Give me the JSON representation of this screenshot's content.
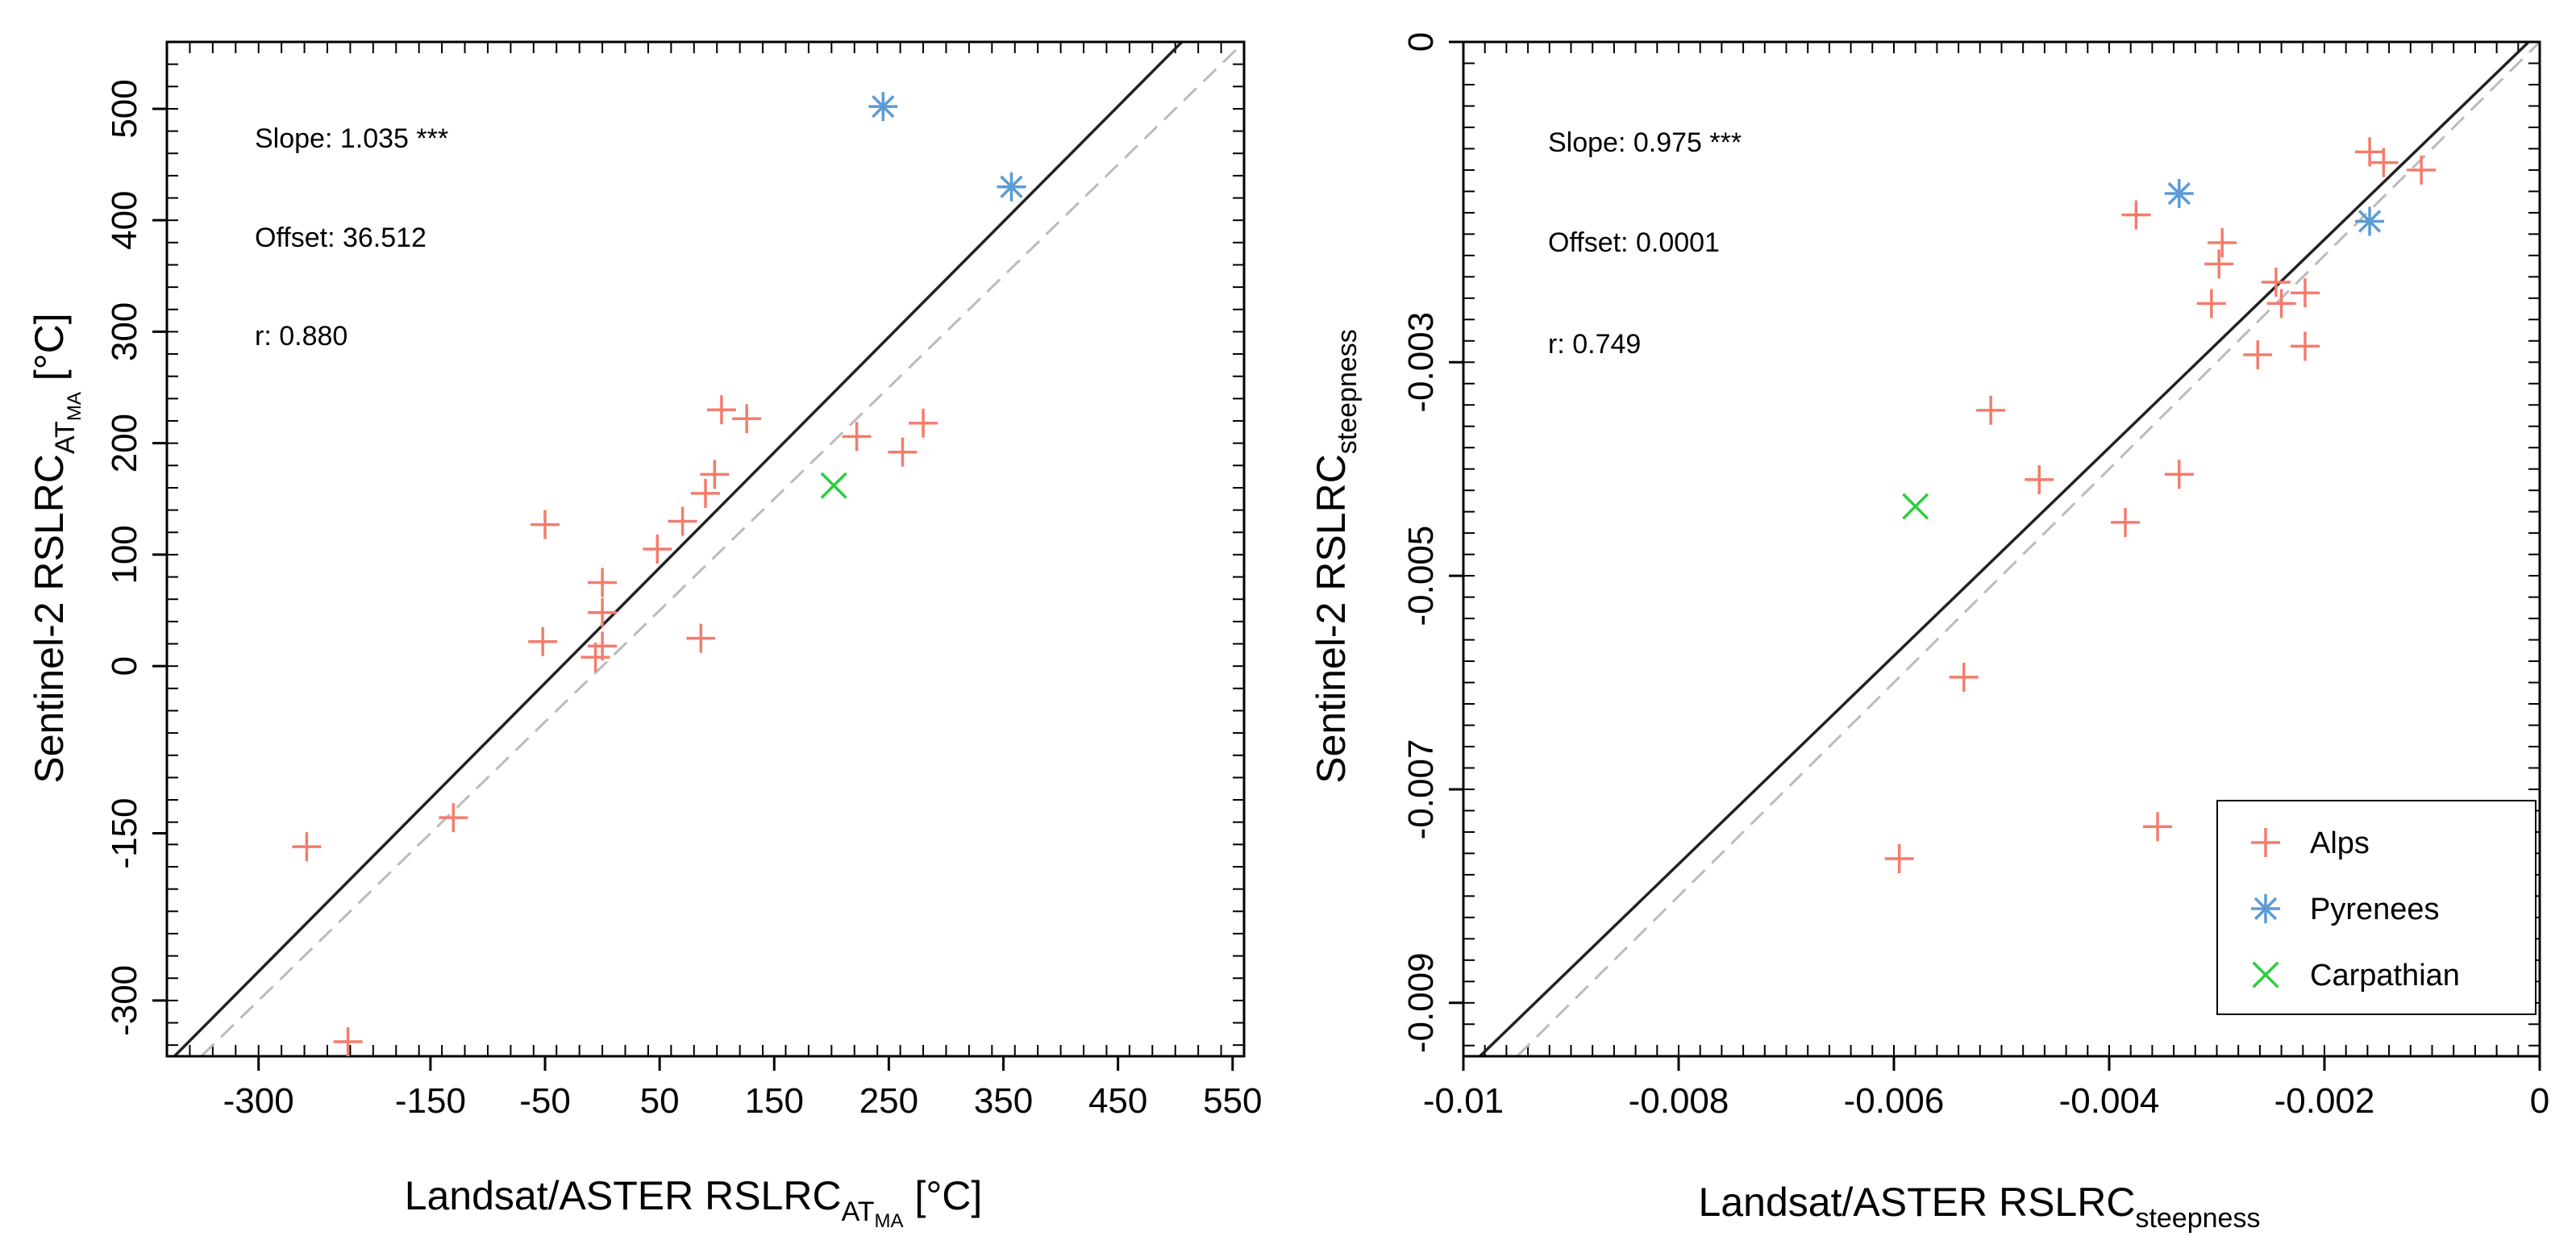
{
  "chart_data": [
    {
      "type": "scatter",
      "title": "",
      "xlabel": {
        "main": "Landsat/ASTER RSLRC",
        "sub": "AT",
        "subsub": "MA",
        "unit": " [°C]"
      },
      "ylabel": {
        "main": "Sentinel-2 RSLRC",
        "sub": "AT",
        "subsub": "MA",
        "unit": " [°C]"
      },
      "xlim": [
        -380,
        560
      ],
      "ylim": [
        -350,
        560
      ],
      "xticks": [
        -300,
        -150,
        -50,
        50,
        150,
        250,
        350,
        450,
        550
      ],
      "xtick_labels": [
        "-300",
        "-150",
        "-50",
        "50",
        "150",
        "250",
        "350",
        "450",
        "550"
      ],
      "yticks": [
        -300,
        -150,
        0,
        100,
        200,
        300,
        400,
        500
      ],
      "ytick_labels": [
        "-300",
        "-150",
        "0",
        "100",
        "200",
        "300",
        "400",
        "500"
      ],
      "annotations": [
        "Slope:  1.035 ***",
        "Offset: 36.512",
        "r: 0.880"
      ],
      "fit_line": {
        "slope": 1.035,
        "offset": 36.512
      },
      "series": [
        {
          "name": "Alps",
          "marker": "plus",
          "color": "#f47c6c",
          "points": [
            [
              -258,
              -162
            ],
            [
              -222,
              -337
            ],
            [
              -130,
              -136
            ],
            [
              -50,
              127
            ],
            [
              -52,
              22
            ],
            [
              -6,
              8
            ],
            [
              0,
              18
            ],
            [
              0,
              75
            ],
            [
              0,
              48
            ],
            [
              48,
              105
            ],
            [
              70,
              130
            ],
            [
              90,
              155
            ],
            [
              98,
              172
            ],
            [
              104,
              230
            ],
            [
              126,
              222
            ],
            [
              222,
              206
            ],
            [
              262,
              192
            ],
            [
              280,
              218
            ],
            [
              86,
              25
            ]
          ]
        },
        {
          "name": "Pyrenees",
          "marker": "asterisk",
          "color": "#5b9bd5",
          "points": [
            [
              245,
              502
            ],
            [
              357,
              430
            ]
          ]
        },
        {
          "name": "Carpathian",
          "marker": "cross",
          "color": "#2ecc40",
          "points": [
            [
              202,
              162
            ]
          ]
        }
      ]
    },
    {
      "type": "scatter",
      "title": "",
      "xlabel": {
        "main": "Landsat/ASTER RSLRC",
        "sub": "steepness"
      },
      "ylabel": {
        "main": "Sentinel-2 RSLRC",
        "sub": "steepness"
      },
      "xlim": [
        -0.01,
        0
      ],
      "ylim": [
        -0.0095,
        0
      ],
      "xticks": [
        -0.01,
        -0.008,
        -0.006,
        -0.004,
        -0.002,
        0
      ],
      "xtick_labels": [
        "-0.01",
        "-0.008",
        "-0.006",
        "-0.004",
        "-0.002",
        "0"
      ],
      "yticks": [
        -0.009,
        -0.007,
        -0.005,
        -0.003,
        0
      ],
      "ytick_labels": [
        "-0.009",
        "-0.007",
        "-0.005",
        "-0.003",
        "0"
      ],
      "annotations": [
        "Slope:  0.975 ***",
        "Offset: 0.0001",
        "r: 0.749"
      ],
      "fit_line": {
        "slope": 0.975,
        "offset": 0.0001
      },
      "legend": {
        "position": "bottom-right",
        "entries": [
          "Alps",
          "Pyrenees",
          "Carpathian"
        ]
      },
      "series": [
        {
          "name": "Alps",
          "marker": "plus",
          "color": "#f47c6c",
          "points": [
            [
              -0.00158,
              -0.00103
            ],
            [
              -0.00145,
              -0.00113
            ],
            [
              -0.0011,
              -0.0012
            ],
            [
              -0.00375,
              -0.00162
            ],
            [
              -0.00295,
              -0.00188
            ],
            [
              -0.00298,
              -0.00208
            ],
            [
              -0.00245,
              -0.00225
            ],
            [
              -0.0024,
              -0.00245
            ],
            [
              -0.00218,
              -0.00235
            ],
            [
              -0.00305,
              -0.00245
            ],
            [
              -0.00262,
              -0.00293
            ],
            [
              -0.00218,
              -0.00285
            ],
            [
              -0.0051,
              -0.00345
            ],
            [
              -0.00465,
              -0.0041
            ],
            [
              -0.00335,
              -0.00405
            ],
            [
              -0.00385,
              -0.0045
            ],
            [
              -0.00535,
              -0.00595
            ],
            [
              -0.00355,
              -0.00735
            ],
            [
              -0.00595,
              -0.00765
            ]
          ]
        },
        {
          "name": "Pyrenees",
          "marker": "asterisk",
          "color": "#5b9bd5",
          "points": [
            [
              -0.00335,
              -0.00142
            ],
            [
              -0.00158,
              -0.00168
            ]
          ]
        },
        {
          "name": "Carpathian",
          "marker": "cross",
          "color": "#2ecc40",
          "points": [
            [
              -0.0058,
              -0.00435
            ]
          ]
        }
      ]
    }
  ]
}
